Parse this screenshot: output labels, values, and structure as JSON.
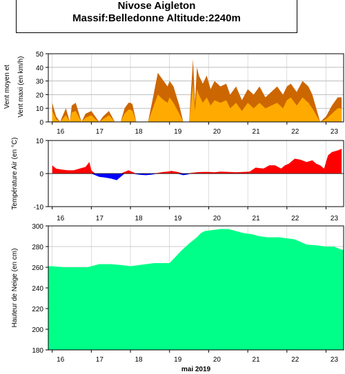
{
  "station": {
    "title_line1": "Nivose Aigleton",
    "title_line2": "Massif:Belledonne Altitude:2240m"
  },
  "chart_data": [
    {
      "type": "area",
      "ylabel_line1": "Vent moyen et",
      "ylabel_line2": "Vent maxi (en km/h)",
      "ylim": [
        0,
        50
      ],
      "yticks": [
        0,
        10,
        20,
        30,
        40,
        50
      ],
      "grid": true,
      "colors": {
        "max": "#cc6600",
        "mean": "#ffaa00"
      },
      "x": [
        16.0,
        16.1,
        16.2,
        16.35,
        16.45,
        16.5,
        16.6,
        16.75,
        16.85,
        17.0,
        17.1,
        17.2,
        17.3,
        17.45,
        17.6,
        17.75,
        17.85,
        17.95,
        18.0,
        18.05,
        18.15,
        18.3,
        18.45,
        18.55,
        18.7,
        18.85,
        18.95,
        19.0,
        19.1,
        19.25,
        19.35,
        19.5,
        19.6,
        19.65,
        19.7,
        19.75,
        19.85,
        19.95,
        20.05,
        20.15,
        20.3,
        20.45,
        20.55,
        20.7,
        20.85,
        21.0,
        21.15,
        21.3,
        21.45,
        21.6,
        21.75,
        21.9,
        22.0,
        22.1,
        22.25,
        22.4,
        22.55,
        22.65,
        22.75,
        22.85,
        23.0,
        23.15,
        23.3,
        23.4
      ],
      "max": [
        14,
        4,
        0,
        10,
        0,
        12,
        14,
        0,
        6,
        8,
        4,
        0,
        4,
        8,
        0,
        0,
        10,
        14,
        14,
        13,
        0,
        0,
        0,
        14,
        36,
        30,
        26,
        30,
        26,
        12,
        0,
        0,
        46,
        14,
        40,
        34,
        28,
        34,
        24,
        30,
        26,
        28,
        20,
        26,
        16,
        24,
        20,
        26,
        18,
        22,
        26,
        20,
        26,
        28,
        22,
        30,
        26,
        20,
        10,
        0,
        4,
        12,
        18,
        18
      ],
      "mean": [
        8,
        2,
        0,
        5,
        0,
        7,
        8,
        0,
        3,
        5,
        2,
        0,
        2,
        5,
        0,
        0,
        6,
        9,
        9,
        8,
        0,
        0,
        0,
        8,
        20,
        16,
        14,
        18,
        14,
        6,
        0,
        0,
        28,
        8,
        24,
        20,
        14,
        18,
        12,
        16,
        14,
        16,
        10,
        14,
        8,
        14,
        10,
        14,
        10,
        12,
        14,
        10,
        16,
        18,
        12,
        18,
        14,
        10,
        5,
        0,
        2,
        6,
        10,
        10
      ]
    },
    {
      "type": "area",
      "ylabel": "Température Air (en °C)",
      "ylim": [
        -10,
        10
      ],
      "yticks": [
        -10,
        0,
        10
      ],
      "grid": true,
      "colors": {
        "positive": "#ff0000",
        "negative": "#0000ff"
      },
      "x": [
        16.0,
        16.1,
        16.25,
        16.4,
        16.55,
        16.7,
        16.85,
        16.95,
        17.0,
        17.1,
        17.2,
        17.35,
        17.5,
        17.65,
        17.75,
        17.85,
        17.95,
        18.05,
        18.15,
        18.25,
        18.4,
        18.55,
        18.7,
        18.85,
        18.95,
        19.05,
        19.2,
        19.35,
        19.45,
        19.55,
        19.7,
        19.85,
        20.0,
        20.15,
        20.3,
        20.5,
        20.7,
        20.9,
        21.05,
        21.2,
        21.4,
        21.55,
        21.7,
        21.85,
        21.95,
        22.05,
        22.2,
        22.35,
        22.5,
        22.65,
        22.75,
        22.85,
        22.95,
        23.05,
        23.15,
        23.3,
        23.4
      ],
      "values": [
        2.5,
        1.5,
        1.2,
        1.0,
        1.0,
        1.5,
        2.0,
        3.5,
        1.0,
        -0.5,
        -1.0,
        -1.2,
        -1.5,
        -2.0,
        -1.0,
        0.5,
        1.0,
        0.5,
        -0.2,
        -0.4,
        -0.5,
        -0.3,
        0.2,
        0.5,
        0.6,
        0.8,
        0.5,
        -0.5,
        -0.3,
        0.2,
        0.4,
        0.5,
        0.5,
        0.4,
        0.6,
        0.5,
        0.4,
        0.5,
        0.6,
        1.8,
        1.5,
        2.5,
        2.5,
        1.5,
        2.5,
        3.0,
        4.5,
        4.2,
        3.5,
        4.0,
        3.0,
        2.5,
        1.5,
        5.5,
        6.5,
        7.0,
        7.5
      ]
    },
    {
      "type": "area",
      "ylabel": "Hauteur de Neige (en cm)",
      "ylim": [
        180,
        300
      ],
      "yticks": [
        180,
        200,
        220,
        240,
        260,
        280,
        300
      ],
      "grid": true,
      "colors": {
        "fill": "#00ff88"
      },
      "x": [
        16.0,
        16.3,
        16.6,
        16.9,
        17.0,
        17.2,
        17.5,
        17.8,
        18.0,
        18.2,
        18.4,
        18.6,
        18.8,
        19.0,
        19.1,
        19.3,
        19.5,
        19.7,
        19.8,
        19.9,
        20.1,
        20.3,
        20.5,
        20.7,
        20.9,
        21.1,
        21.3,
        21.5,
        21.8,
        22.0,
        22.2,
        22.5,
        22.8,
        23.0,
        23.2,
        23.4
      ],
      "values": [
        261,
        260,
        260,
        260,
        261,
        263,
        263,
        262,
        261,
        262,
        263,
        264,
        264,
        264,
        268,
        276,
        283,
        289,
        293,
        295,
        296,
        297,
        297,
        295,
        293,
        292,
        290,
        289,
        289,
        288,
        287,
        282,
        281,
        280,
        280,
        277
      ]
    }
  ],
  "x_axis": {
    "ticks": [
      "16",
      "17",
      "18",
      "19",
      "20",
      "21",
      "22",
      "23"
    ],
    "tick_values": [
      16,
      17,
      18,
      19,
      20,
      21,
      22,
      23
    ],
    "xlim": [
      15.9,
      23.45
    ],
    "label": "mai 2019"
  }
}
